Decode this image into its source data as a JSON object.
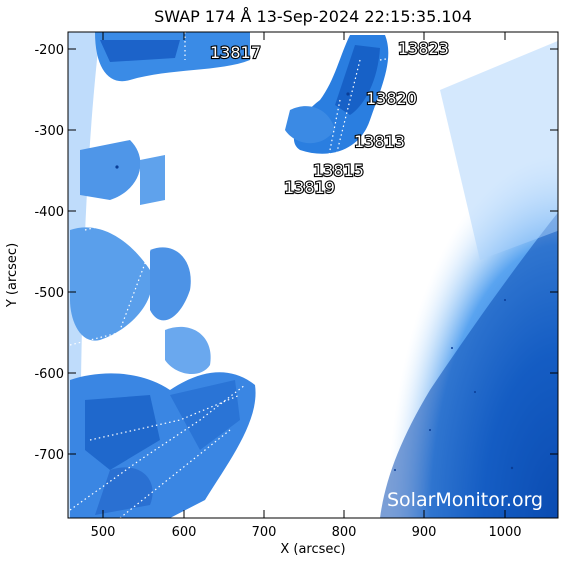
{
  "title": "SWAP 174 Å 13-Sep-2024 22:15:35.104",
  "xlabel": "X (arcsec)",
  "ylabel": "Y (arcsec)",
  "x_ticks": [
    "500",
    "600",
    "700",
    "800",
    "900",
    "1000"
  ],
  "y_ticks": [
    "-200",
    "-300",
    "-400",
    "-500",
    "-600",
    "-700"
  ],
  "active_regions": [
    "13817",
    "13823",
    "13820",
    "13813",
    "13815",
    "13819"
  ],
  "watermark": "SolarMonitor.org",
  "colors": {
    "deep_blue": "#0a4fb8",
    "mid_blue": "#2f86e6",
    "light_blue": "#a9d2fb",
    "white": "#ffffff"
  }
}
